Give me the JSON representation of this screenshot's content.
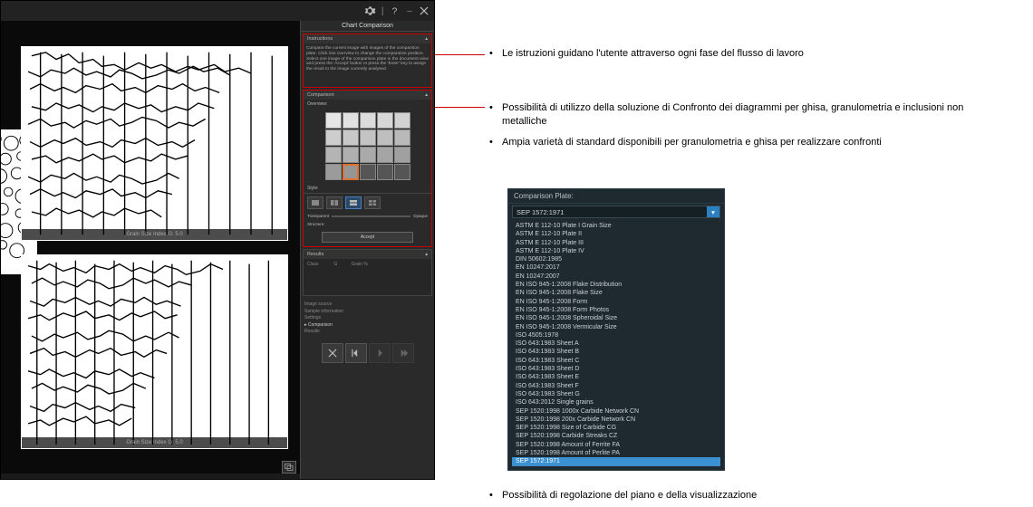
{
  "colors": {
    "app_bg": "#1a1a1a",
    "panel_bg": "#2a2a2a",
    "accent_red": "#c00000",
    "accent_orange": "#e07030",
    "accent_blue": "#2a80c0",
    "text_light": "#bbbbbb",
    "dropdown_bg": "#1f2a30",
    "selected_bg": "#3a90d0"
  },
  "window": {
    "title": "Chart Comparison"
  },
  "images": {
    "caption_top": "Grain Size Index G: 5.0",
    "caption_bot": "Grain Size Index G: 5.0"
  },
  "panel": {
    "instructions_header": "Instructions",
    "instructions_text": "Compare the current image with images of the comparison plate. Click into overview to change the comparative position.\nSelect one image of the comparison plate in the document view and press the 'Accept' button or press the 'Enter' key to assign the result to the image currently analysed.",
    "comparison_header": "Comparison",
    "overview_label": "Overview:",
    "style_label": "Style:",
    "transparent_label": "Transparent",
    "opaque_label": "Opaque",
    "structure_label": "Structure:",
    "accept_button": "Accept",
    "results_header": "Results",
    "results_cols": {
      "a": "Class",
      "b": "G",
      "c": "Grain %"
    },
    "links": {
      "image_source": "Image source",
      "sample_info": "Sample information",
      "settings": "Settings",
      "comparison": "Comparison",
      "results": "Results"
    }
  },
  "overview_grid": {
    "rows": 4,
    "cols": 5,
    "highlighted_index": 16
  },
  "bullets": {
    "b1": "Le istruzioni guidano l'utente attraverso ogni fase del flusso di lavoro",
    "b2": "Possibilità di utilizzo della soluzione di Confronto dei diagrammi per ghisa, granulometria e inclusioni non metalliche",
    "b3": "Ampia varietà di standard disponibili per granulometria e ghisa per realizzare confronti",
    "b4": "Possibilità di regolazione del piano e della visualizzazione"
  },
  "dropdown": {
    "label": "Comparison Plate:",
    "selected": "SEP 1572:1971",
    "options": [
      "ASTM E 112-10 Plate I Grain Size",
      "ASTM E 112-10 Plate II",
      "ASTM E 112-10 Plate III",
      "ASTM E 112-10 Plate IV",
      "DIN 50602:1985",
      "EN 10247:2017",
      "EN 10247:2007",
      "EN ISO 945-1:2008 Flake Distribution",
      "EN ISO 945-1:2008 Flake Size",
      "EN ISO 945-1:2008 Form",
      "EN ISO 945-1:2008 Form Photos",
      "EN ISO 945-1:2008 Spheroidal Size",
      "EN ISO 945-1:2008 Vermicular Size",
      "ISO 4505:1978",
      "ISO 643:1983 Sheet A",
      "ISO 643:1983 Sheet B",
      "ISO 643:1983 Sheet C",
      "ISO 643:1983 Sheet D",
      "ISO 643:1983 Sheet E",
      "ISO 643:1983 Sheet F",
      "ISO 643:1983 Sheet G",
      "ISO 643:2012 Single grains",
      "SEP 1520:1998 1000x Carbide Network CN",
      "SEP 1520:1998 200x Carbide Network CN",
      "SEP 1520:1998 Size of Carbide CG",
      "SEP 1520:1998 Carbide Streaks CZ",
      "SEP 1520:1998 Amount of Ferrite FA",
      "SEP 1520:1998 Amount of Perlite PA",
      "SEP 1572:1971"
    ],
    "selected_index": 28
  }
}
